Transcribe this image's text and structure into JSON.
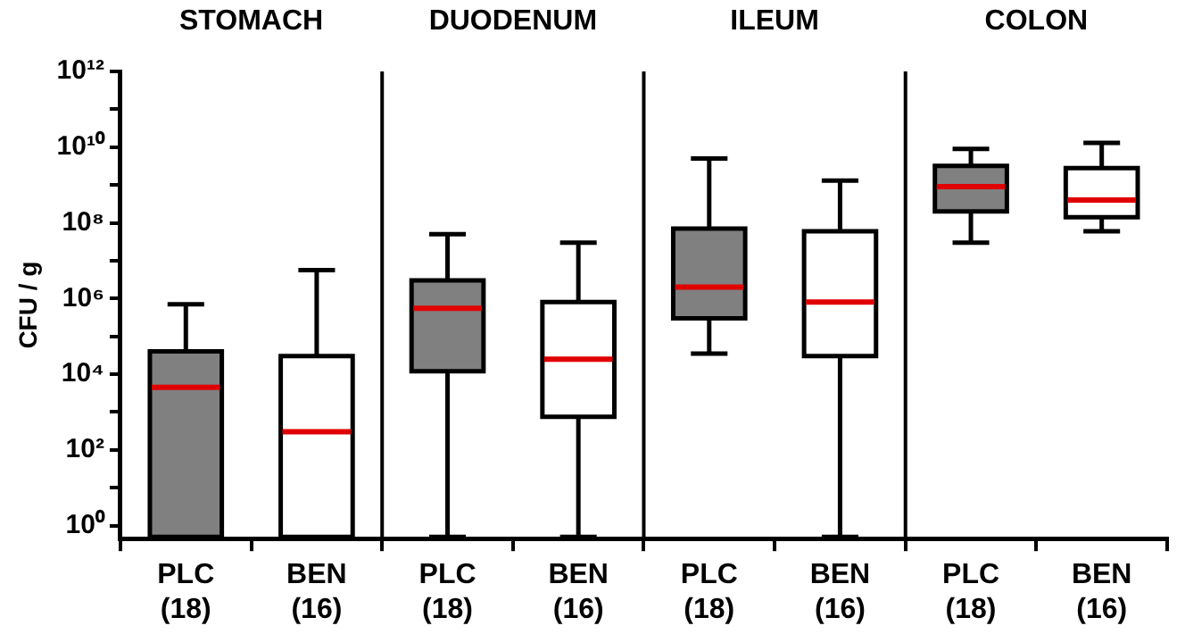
{
  "chart_data": {
    "type": "box",
    "ylabel": "CFU / g",
    "log": "y",
    "grid": false,
    "legend": false,
    "categories": [
      "PLC (18)",
      "BEN (16)",
      "PLC (18)",
      "BEN (16)",
      "PLC (18)",
      "BEN (16)",
      "PLC (18)",
      "BEN (16)"
    ],
    "colors": [
      "#808080",
      "#ffffff",
      "#808080",
      "#ffffff",
      "#808080",
      "#ffffff",
      "#808080",
      "#ffffff"
    ],
    "boxes": [
      {
        "low": 0.5,
        "q1": 0.5,
        "median": 4500,
        "q3": 40000,
        "high": 700000
      },
      {
        "low": 0.5,
        "q1": 0.5,
        "median": 300,
        "q3": 30000,
        "high": 5600000
      },
      {
        "low": 0.5,
        "q1": 12000,
        "median": 550000,
        "q3": 3000000,
        "high": 50000000
      },
      {
        "low": 0.5,
        "q1": 750,
        "median": 25000,
        "q3": 800000,
        "high": 30000000
      },
      {
        "low": 35000,
        "q1": 300000,
        "median": 2000000,
        "q3": 70000000,
        "high": 5000000000
      },
      {
        "low": 0.5,
        "q1": 30000,
        "median": 800000,
        "q3": 60000000,
        "high": 1300000000
      },
      {
        "low": 30000000,
        "q1": 200000000,
        "median": 900000000,
        "q3": 3200000000,
        "high": 9000000000
      },
      {
        "low": 60000000,
        "q1": 140000000,
        "median": 400000000,
        "q3": 2800000000,
        "high": 13000000000
      }
    ],
    "ylim": [
      0.45,
      1000000000000
    ],
    "yticks": [
      {
        "value": 1,
        "label": "10⁰"
      },
      {
        "value": 10,
        "label": null
      },
      {
        "value": 100,
        "label": "10²"
      },
      {
        "value": 1000,
        "label": null
      },
      {
        "value": 10000,
        "label": "10⁴"
      },
      {
        "value": 100000,
        "label": null
      },
      {
        "value": 1000000,
        "label": "10⁶"
      },
      {
        "value": 10000000,
        "label": null
      },
      {
        "value": 100000000,
        "label": "10⁸"
      },
      {
        "value": 1000000000,
        "label": null
      },
      {
        "value": 10000000000,
        "label": "10¹⁰"
      },
      {
        "value": 100000000000,
        "label": null
      },
      {
        "value": 1000000000000,
        "label": "10¹²"
      }
    ],
    "annotations": [
      "STOMACH",
      "DUODENUM",
      "ILEUM",
      "COLON"
    ]
  }
}
